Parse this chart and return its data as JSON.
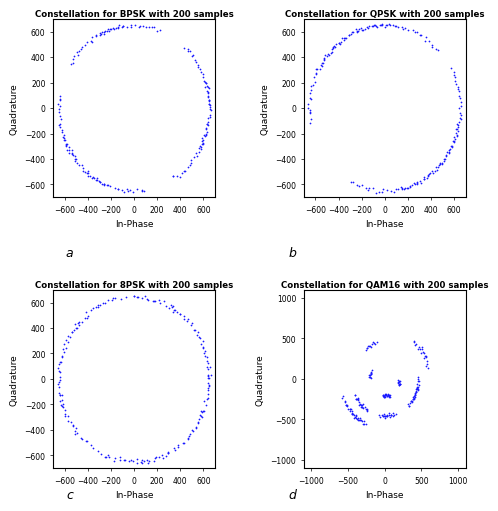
{
  "title_bpsk": "Constellation for BPSK with 200 samples",
  "title_qpsk": "Constellation for QPSK with 200 samples",
  "title_8psk": "Constellation for 8PSK with 200 samples",
  "title_qam16": "Constellation for QAM16 with 200 samples",
  "xlabel": "In-Phase",
  "ylabel": "Quadrature",
  "dot_color": "#1a1aff",
  "dot_size": 2.5,
  "label_a": "a",
  "label_b": "b",
  "label_c": "c",
  "label_d": "d",
  "n_samples": 200,
  "amplitude": 650,
  "bpsk_xlim": [
    -700,
    700
  ],
  "bpsk_ylim": [
    -700,
    700
  ],
  "qpsk_xlim": [
    -700,
    700
  ],
  "qpsk_ylim": [
    -700,
    700
  ],
  "psk8_xlim": [
    -700,
    700
  ],
  "psk8_ylim": [
    -700,
    700
  ],
  "qam16_xlim": [
    -1100,
    1100
  ],
  "qam16_ylim": [
    -1100,
    1100
  ],
  "bpsk_xticks": [
    -600,
    -400,
    -200,
    0,
    200,
    400,
    600
  ],
  "bpsk_yticks": [
    -600,
    -400,
    -200,
    0,
    200,
    400,
    600
  ],
  "qam16_xticks": [
    -1000,
    -500,
    0,
    500,
    1000
  ],
  "qam16_yticks": [
    -1000,
    -500,
    0,
    500,
    1000
  ]
}
